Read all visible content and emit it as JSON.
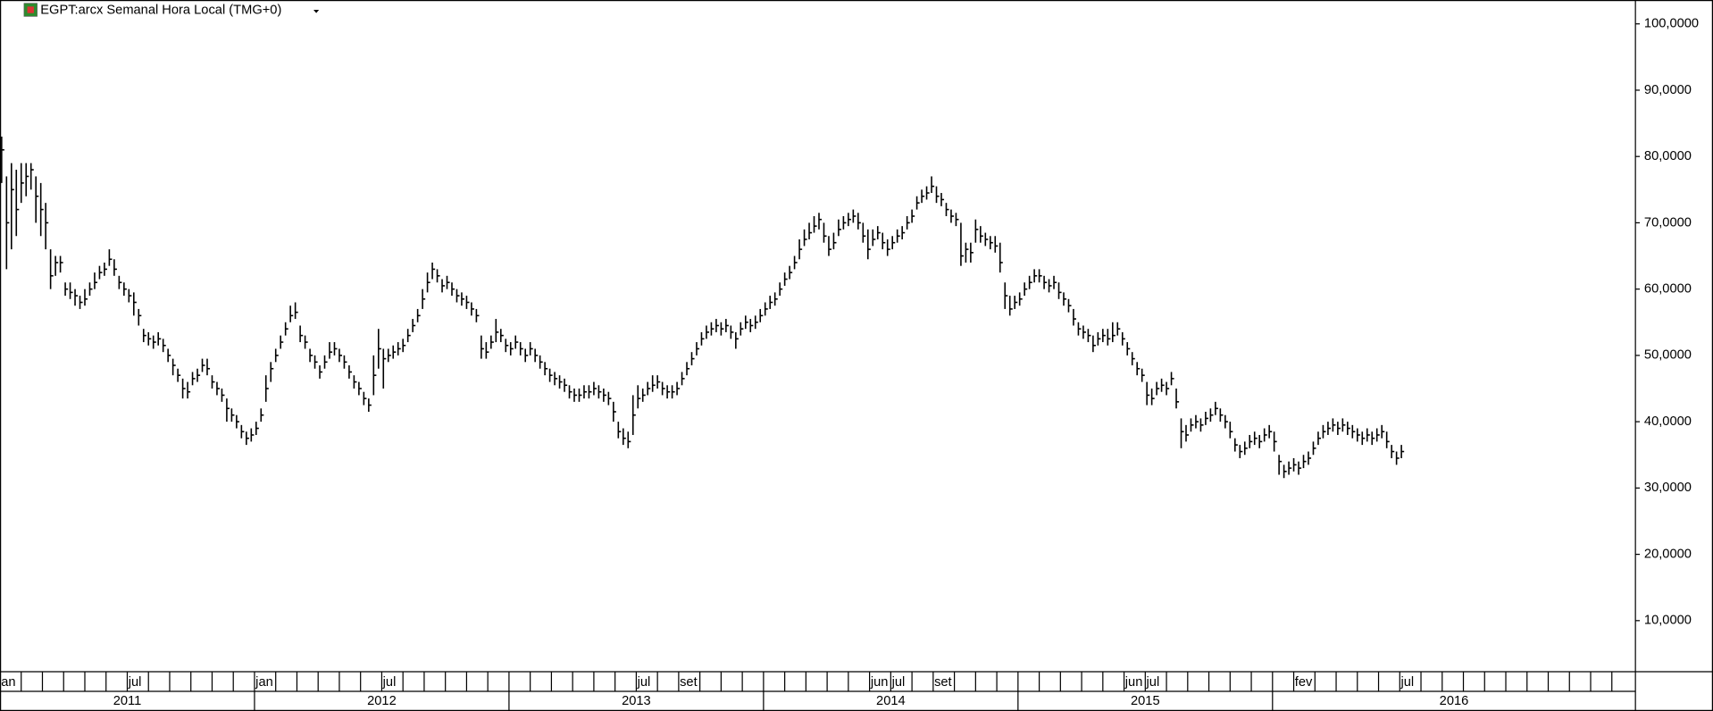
{
  "chart_data": {
    "type": "ohlc",
    "title": "EGPT:arcx Semanal Hora Local (TMG+0)",
    "color": "#000000",
    "ylim": [
      2.3,
      103.6
    ],
    "yticks": [
      {
        "value": 100,
        "label": "100,0000"
      },
      {
        "value": 90,
        "label": "90,0000"
      },
      {
        "value": 80,
        "label": "80,0000"
      },
      {
        "value": 70,
        "label": "70,0000"
      },
      {
        "value": 60,
        "label": "60,0000"
      },
      {
        "value": 50,
        "label": "50,0000"
      },
      {
        "value": 40,
        "label": "40,0000"
      },
      {
        "value": 30,
        "label": "30,0000"
      },
      {
        "value": 20,
        "label": "20,0000"
      },
      {
        "value": 10,
        "label": "10,0000"
      }
    ],
    "months": [
      "an",
      null,
      null,
      null,
      null,
      null,
      "jul",
      null,
      null,
      null,
      null,
      null,
      "jan",
      null,
      null,
      null,
      null,
      null,
      "jul",
      null,
      null,
      null,
      null,
      null,
      null,
      null,
      null,
      null,
      null,
      null,
      "jul",
      null,
      "set",
      null,
      null,
      null,
      null,
      null,
      null,
      null,
      null,
      "jun",
      "jul",
      null,
      "set",
      null,
      null,
      null,
      null,
      null,
      null,
      null,
      null,
      "jun",
      "jul",
      null,
      null,
      null,
      null,
      null,
      null,
      "fev",
      null,
      null,
      null,
      null,
      "jul",
      null,
      null,
      null,
      null,
      null,
      null,
      null,
      null,
      null,
      null
    ],
    "years": [
      "2011",
      "2012",
      "2013",
      "2014",
      "2015",
      "2016"
    ],
    "bars": [
      [
        83,
        76,
        81
      ],
      [
        77,
        63,
        70
      ],
      [
        79,
        66,
        75
      ],
      [
        78,
        68,
        72
      ],
      [
        79,
        73,
        76
      ],
      [
        79,
        74,
        77
      ],
      [
        79,
        75,
        78
      ],
      [
        77,
        70,
        74
      ],
      [
        76,
        68,
        72
      ],
      [
        73,
        66,
        70
      ],
      [
        66,
        60,
        62
      ],
      [
        65,
        62,
        64
      ],
      [
        65,
        62.5,
        64
      ],
      [
        61,
        59,
        60
      ],
      [
        61,
        58.5,
        59.5
      ],
      [
        60,
        57.5,
        59
      ],
      [
        59,
        57,
        58
      ],
      [
        60,
        57.5,
        58.5
      ],
      [
        61,
        59,
        60
      ],
      [
        62.5,
        60,
        61
      ],
      [
        63.5,
        61.5,
        62.5
      ],
      [
        64,
        62,
        63
      ],
      [
        66,
        63.5,
        64.5
      ],
      [
        64.5,
        62,
        63
      ],
      [
        62,
        60,
        61
      ],
      [
        61,
        59,
        60
      ],
      [
        60,
        58,
        59
      ],
      [
        59.5,
        56,
        58
      ],
      [
        57,
        54.5,
        56
      ],
      [
        54,
        52,
        53
      ],
      [
        53.5,
        51.5,
        52.5
      ],
      [
        53,
        51,
        52
      ],
      [
        53.5,
        51.5,
        52.5
      ],
      [
        52.5,
        50.5,
        51.5
      ],
      [
        51,
        49,
        50
      ],
      [
        49.5,
        47,
        48.5
      ],
      [
        48,
        46,
        47
      ],
      [
        46.5,
        43.5,
        45
      ],
      [
        46,
        43.5,
        44.5
      ],
      [
        47.5,
        45.5,
        46.5
      ],
      [
        48,
        46,
        47
      ],
      [
        49.5,
        47.5,
        48.5
      ],
      [
        49.5,
        47,
        48
      ],
      [
        47,
        45,
        46
      ],
      [
        46,
        44,
        45
      ],
      [
        45,
        43,
        44
      ],
      [
        43.5,
        40,
        42
      ],
      [
        42,
        40,
        41
      ],
      [
        41,
        39,
        40
      ],
      [
        39.5,
        37.5,
        38.5
      ],
      [
        38.5,
        36.5,
        37.5
      ],
      [
        39,
        37,
        38
      ],
      [
        40,
        38,
        39
      ],
      [
        42,
        40,
        41
      ],
      [
        47,
        43,
        45
      ],
      [
        49,
        46,
        48
      ],
      [
        51,
        49,
        50
      ],
      [
        53,
        51,
        52
      ],
      [
        55,
        53,
        54
      ],
      [
        57.5,
        55,
        56
      ],
      [
        58,
        55.5,
        56.5
      ],
      [
        54.5,
        52,
        53
      ],
      [
        53,
        51,
        52
      ],
      [
        51,
        49,
        50
      ],
      [
        50,
        48,
        49
      ],
      [
        48.5,
        46.5,
        47.5
      ],
      [
        50,
        48,
        49
      ],
      [
        52,
        49.5,
        50.5
      ],
      [
        52,
        50,
        51
      ],
      [
        51,
        49,
        50
      ],
      [
        50,
        48,
        49
      ],
      [
        48.5,
        46.5,
        47.5
      ],
      [
        47,
        45,
        46
      ],
      [
        46,
        44,
        45
      ],
      [
        44.5,
        42.5,
        43.5
      ],
      [
        43.5,
        41.5,
        42.5
      ],
      [
        50,
        44,
        47
      ],
      [
        54,
        48,
        51
      ],
      [
        51,
        45,
        49.5
      ],
      [
        51,
        49,
        50
      ],
      [
        51.5,
        49.5,
        50.5
      ],
      [
        52,
        50,
        51
      ],
      [
        52.5,
        50.5,
        51.5
      ],
      [
        54,
        52,
        53
      ],
      [
        55.5,
        53.5,
        54.5
      ],
      [
        57,
        55,
        56
      ],
      [
        60,
        57,
        58.5
      ],
      [
        62.5,
        59.5,
        61
      ],
      [
        64,
        61.5,
        63
      ],
      [
        63,
        61,
        62
      ],
      [
        61.5,
        59.5,
        60.5
      ],
      [
        62,
        60,
        61
      ],
      [
        61,
        59,
        60
      ],
      [
        60,
        58,
        59
      ],
      [
        59.5,
        57.5,
        58.5
      ],
      [
        59,
        57,
        58
      ],
      [
        58,
        56,
        57
      ],
      [
        57,
        55,
        56
      ],
      [
        53,
        49.5,
        51
      ],
      [
        52,
        49.5,
        50.5
      ],
      [
        53,
        51,
        52
      ],
      [
        55.5,
        52,
        53.5
      ],
      [
        54,
        52,
        53
      ],
      [
        52.5,
        50.5,
        51.5
      ],
      [
        52,
        50,
        51
      ],
      [
        53,
        51,
        52
      ],
      [
        52,
        50,
        51
      ],
      [
        51,
        49,
        50
      ],
      [
        52,
        50,
        51
      ],
      [
        51,
        49,
        50
      ],
      [
        50,
        48,
        49
      ],
      [
        49,
        47,
        48
      ],
      [
        48,
        46,
        47
      ],
      [
        47.5,
        45.5,
        46.5
      ],
      [
        47,
        45,
        46
      ],
      [
        46.5,
        44.5,
        45.5
      ],
      [
        45.5,
        43.5,
        44.5
      ],
      [
        45,
        43,
        44
      ],
      [
        45,
        43,
        44
      ],
      [
        45.5,
        43.5,
        44.5
      ],
      [
        45.5,
        43.5,
        44.5
      ],
      [
        46,
        44,
        45
      ],
      [
        45.5,
        43.5,
        44.5
      ],
      [
        45,
        43,
        44
      ],
      [
        44.5,
        42.5,
        43.5
      ],
      [
        43,
        40,
        41.5
      ],
      [
        40,
        37.5,
        38.5
      ],
      [
        39,
        36.5,
        37.5
      ],
      [
        38.5,
        36,
        37
      ],
      [
        44,
        38,
        41
      ],
      [
        45.5,
        42,
        43.5
      ],
      [
        45,
        43,
        44
      ],
      [
        46,
        44,
        45
      ],
      [
        47,
        44.5,
        45.5
      ],
      [
        47,
        45,
        46
      ],
      [
        46,
        44,
        45
      ],
      [
        45.5,
        43.5,
        44.5
      ],
      [
        45.5,
        43.5,
        44.5
      ],
      [
        46,
        44,
        45
      ],
      [
        47.5,
        45.5,
        46.5
      ],
      [
        49,
        47,
        48
      ],
      [
        50.5,
        48.5,
        49.5
      ],
      [
        52,
        50,
        51
      ],
      [
        53.5,
        51.5,
        52.5
      ],
      [
        54.5,
        52.5,
        53.5
      ],
      [
        55,
        53,
        54
      ],
      [
        55.5,
        53.5,
        54.5
      ],
      [
        55,
        53,
        54
      ],
      [
        55.5,
        53.5,
        54.5
      ],
      [
        54.5,
        52.5,
        53.5
      ],
      [
        53.5,
        51,
        52.5
      ],
      [
        55,
        53,
        54
      ],
      [
        56,
        54,
        55
      ],
      [
        55.5,
        53.5,
        54.5
      ],
      [
        56,
        54,
        55
      ],
      [
        57,
        55,
        56
      ],
      [
        58,
        56,
        57
      ],
      [
        59,
        57,
        58
      ],
      [
        59.5,
        57.5,
        58.5
      ],
      [
        61,
        59,
        60
      ],
      [
        62.5,
        60.5,
        61.5
      ],
      [
        63.5,
        61.5,
        62.5
      ],
      [
        65,
        63,
        64
      ],
      [
        67.5,
        64.5,
        66
      ],
      [
        69,
        66.5,
        67.5
      ],
      [
        70,
        67.5,
        68.5
      ],
      [
        71,
        68.5,
        69.5
      ],
      [
        71.5,
        69,
        70.5
      ],
      [
        70,
        67,
        68
      ],
      [
        68,
        65,
        66
      ],
      [
        68.5,
        66,
        67
      ],
      [
        70.5,
        68,
        69
      ],
      [
        71,
        69,
        70
      ],
      [
        71.5,
        69.5,
        70.5
      ],
      [
        72,
        70,
        71
      ],
      [
        71.5,
        69,
        70
      ],
      [
        70,
        67,
        68
      ],
      [
        69,
        64.5,
        66
      ],
      [
        69,
        66.5,
        67.5
      ],
      [
        69.5,
        67.5,
        68.5
      ],
      [
        68.5,
        66,
        67
      ],
      [
        67.5,
        65,
        66
      ],
      [
        68,
        66,
        67
      ],
      [
        69,
        67,
        68
      ],
      [
        69.5,
        67.5,
        68.5
      ],
      [
        71,
        69,
        70
      ],
      [
        72,
        70,
        71
      ],
      [
        74,
        72,
        73
      ],
      [
        75,
        73,
        74
      ],
      [
        75.5,
        73.5,
        74.5
      ],
      [
        77,
        74.5,
        75.5
      ],
      [
        75.5,
        73,
        74
      ],
      [
        74.5,
        72.5,
        73.5
      ],
      [
        73,
        71,
        72
      ],
      [
        72,
        70,
        71
      ],
      [
        71.5,
        69.5,
        70.5
      ],
      [
        70,
        63.5,
        65
      ],
      [
        67,
        64,
        66
      ],
      [
        67,
        64,
        65.5
      ],
      [
        70.5,
        67,
        69
      ],
      [
        69.5,
        67,
        68
      ],
      [
        68.5,
        66.5,
        67.5
      ],
      [
        68,
        66,
        67
      ],
      [
        68,
        65.5,
        66.5
      ],
      [
        67,
        62.5,
        64
      ],
      [
        61,
        57,
        59
      ],
      [
        59,
        56,
        57
      ],
      [
        59,
        57,
        58
      ],
      [
        59.5,
        57.5,
        58.5
      ],
      [
        61,
        59,
        60
      ],
      [
        62,
        60,
        61
      ],
      [
        63,
        61,
        62
      ],
      [
        63,
        61,
        62
      ],
      [
        62,
        60,
        61
      ],
      [
        61.5,
        59.5,
        60.5
      ],
      [
        62,
        60,
        61
      ],
      [
        61,
        58.5,
        59.5
      ],
      [
        59.5,
        57.5,
        58.5
      ],
      [
        58.5,
        56.5,
        57.5
      ],
      [
        57,
        54.5,
        55.5
      ],
      [
        55,
        53,
        54
      ],
      [
        54.5,
        52.5,
        53.5
      ],
      [
        54,
        52,
        53
      ],
      [
        53,
        50.5,
        51.5
      ],
      [
        53.5,
        51.5,
        52.5
      ],
      [
        54,
        52,
        53
      ],
      [
        54,
        51.5,
        52.5
      ],
      [
        55,
        52,
        53
      ],
      [
        55,
        53,
        54
      ],
      [
        53.5,
        51.5,
        52.5
      ],
      [
        52,
        50,
        51
      ],
      [
        50.5,
        48.5,
        49.5
      ],
      [
        49,
        47,
        48
      ],
      [
        48,
        46,
        47
      ],
      [
        46,
        42.5,
        44
      ],
      [
        45,
        42.5,
        43.5
      ],
      [
        46,
        44,
        45
      ],
      [
        46.5,
        44.5,
        45.5
      ],
      [
        46,
        44,
        45
      ],
      [
        47.5,
        45.5,
        46.5
      ],
      [
        45,
        42,
        43
      ],
      [
        40.5,
        36,
        38.5
      ],
      [
        39.5,
        37,
        38
      ],
      [
        40.5,
        38.5,
        39.5
      ],
      [
        41,
        39,
        40
      ],
      [
        40.5,
        38.5,
        39.5
      ],
      [
        41.5,
        39.5,
        40.5
      ],
      [
        42,
        40,
        41
      ],
      [
        43,
        41,
        42
      ],
      [
        42,
        40,
        41
      ],
      [
        41,
        39,
        40
      ],
      [
        40,
        37.5,
        38.5
      ],
      [
        37.5,
        35.5,
        36.5
      ],
      [
        36.5,
        34.5,
        35.5
      ],
      [
        37,
        35,
        36
      ],
      [
        38,
        36,
        37
      ],
      [
        38.5,
        36.5,
        37.5
      ],
      [
        38,
        36,
        37
      ],
      [
        39,
        37,
        38
      ],
      [
        39.5,
        37.5,
        38.5
      ],
      [
        38.5,
        35.5,
        37
      ],
      [
        35,
        32,
        34
      ],
      [
        33.5,
        31.5,
        32.5
      ],
      [
        34,
        32,
        33
      ],
      [
        34.5,
        32.5,
        33.5
      ],
      [
        34,
        32,
        33
      ],
      [
        35,
        33,
        34
      ],
      [
        35.5,
        33.5,
        34.5
      ],
      [
        37,
        35,
        36
      ],
      [
        38.5,
        36.5,
        37.5
      ],
      [
        39.5,
        37.5,
        38.5
      ],
      [
        40,
        38,
        39
      ],
      [
        40.5,
        38.5,
        39.5
      ],
      [
        40,
        38,
        39
      ],
      [
        40.5,
        38.5,
        39.5
      ],
      [
        40,
        38,
        39
      ],
      [
        39.5,
        37.5,
        38.5
      ],
      [
        39,
        37,
        38
      ],
      [
        38.5,
        36.5,
        37.5
      ],
      [
        39,
        37,
        38
      ],
      [
        38.5,
        36.5,
        37.5
      ],
      [
        39,
        37,
        38
      ],
      [
        39.5,
        37.5,
        38.5
      ],
      [
        38.5,
        36,
        37
      ],
      [
        36.5,
        34.5,
        35.5
      ],
      [
        35.5,
        33.5,
        34.5
      ],
      [
        36.5,
        34.5,
        35.5
      ]
    ]
  }
}
